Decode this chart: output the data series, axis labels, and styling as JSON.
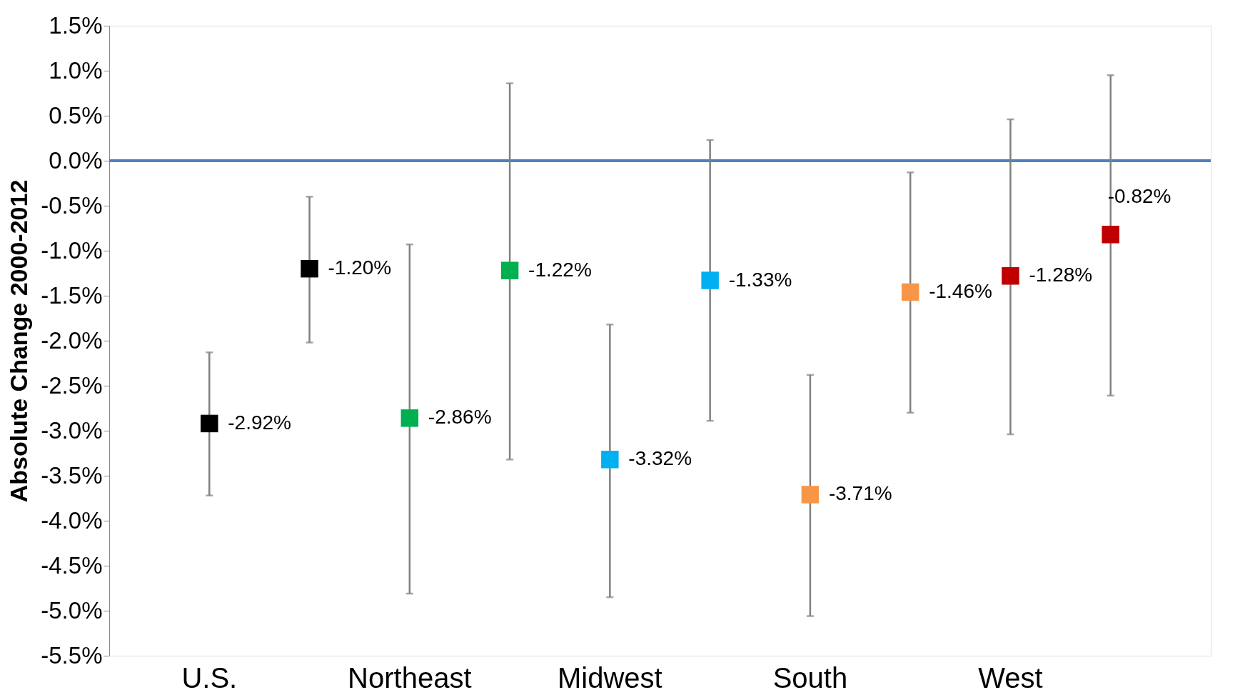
{
  "chart_data": {
    "type": "scatter",
    "ylabel": "Absolute Change 2000-2012",
    "categories": [
      "U.S.",
      null,
      "Northeast",
      null,
      "Midwest",
      null,
      "South",
      null,
      "West",
      null
    ],
    "values": [
      -2.92,
      -1.2,
      -2.86,
      -1.22,
      -3.32,
      -1.33,
      -3.71,
      -1.46,
      -1.28,
      -0.82
    ],
    "value_labels": [
      "-2.92%",
      "-1.20%",
      "-2.86%",
      "-1.22%",
      "-3.32%",
      "-1.33%",
      "-3.71%",
      "-1.46%",
      "-1.28%",
      "-0.82%"
    ],
    "colors": [
      "#000000",
      "#000000",
      "#00b050",
      "#00b050",
      "#00b0f0",
      "#00b0f0",
      "#f79646",
      "#f79646",
      "#c00000",
      "#c00000"
    ],
    "errors": [
      [
        -3.72,
        -2.13
      ],
      [
        -2.02,
        -0.4
      ],
      [
        -4.81,
        -0.93
      ],
      [
        -3.32,
        0.86
      ],
      [
        -4.85,
        -1.82
      ],
      [
        -2.89,
        0.23
      ],
      [
        -5.06,
        -2.38
      ],
      [
        -2.8,
        -0.13
      ],
      [
        -3.04,
        0.46
      ],
      [
        -2.61,
        0.95
      ]
    ],
    "ylim": [
      -5.5,
      1.5
    ],
    "yticks": [
      {
        "value": -5.5,
        "label": "-5.5%"
      },
      {
        "value": -5.0,
        "label": "-5.0%"
      },
      {
        "value": -4.5,
        "label": "-4.5%"
      },
      {
        "value": -4.0,
        "label": "-4.0%"
      },
      {
        "value": -3.5,
        "label": "-3.5%"
      },
      {
        "value": -3.0,
        "label": "-3.0%"
      },
      {
        "value": -2.5,
        "label": "-2.5%"
      },
      {
        "value": -2.0,
        "label": "-2.0%"
      },
      {
        "value": -1.5,
        "label": "-1.5%"
      },
      {
        "value": -1.0,
        "label": "-1.0%"
      },
      {
        "value": -0.5,
        "label": "-0.5%"
      },
      {
        "value": 0.0,
        "label": "0.0%"
      },
      {
        "value": 0.5,
        "label": "0.5%"
      },
      {
        "value": 1.0,
        "label": "1.0%"
      },
      {
        "value": 1.5,
        "label": "1.5%"
      }
    ],
    "ref_lines": [
      {
        "axis": "y",
        "value": 0,
        "color": "#4f81bd"
      }
    ],
    "marker": "square",
    "legend": false,
    "grid": false
  }
}
